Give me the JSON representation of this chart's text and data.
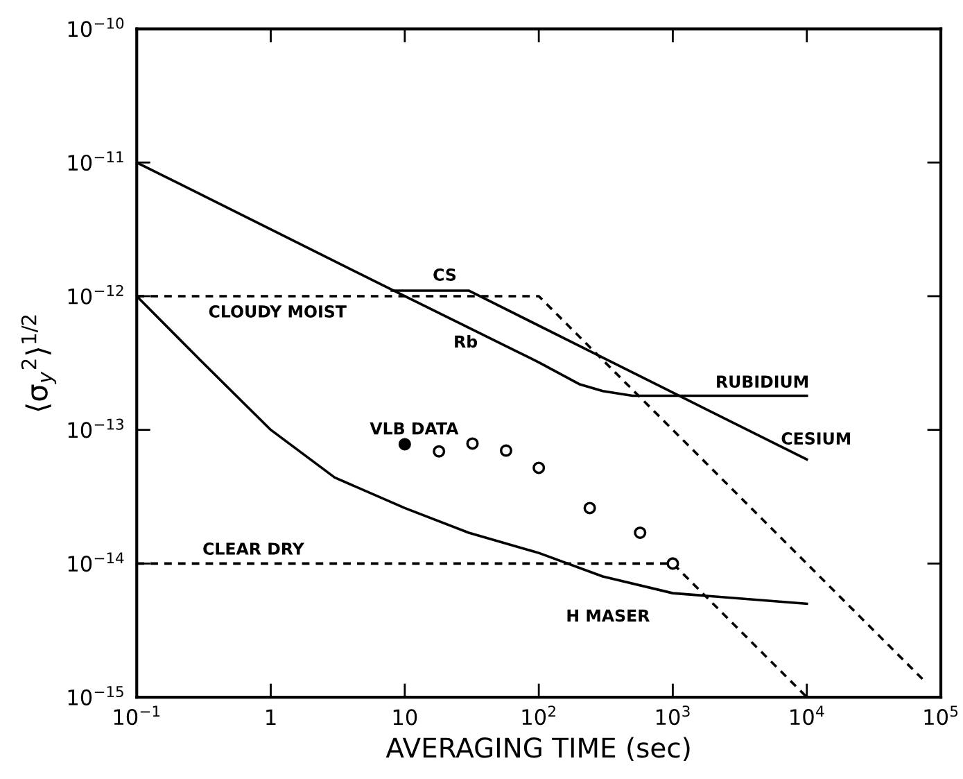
{
  "chart_data": {
    "type": "line",
    "xlabel": "AVERAGING TIME (sec)",
    "ylabel": "⟨σ$_{y}$$^{2}$⟩$^{1/2}$",
    "log": "xy",
    "grid": false,
    "xlim": [
      0.1,
      100000
    ],
    "ylim": [
      1e-15,
      1e-10
    ],
    "xticks": [
      {
        "value": 0.1,
        "label": "10$^{−1}$"
      },
      1,
      10,
      {
        "value": 100,
        "label": "10$^{2}$"
      },
      {
        "value": 1000,
        "label": "10$^{3}$"
      },
      {
        "value": 10000,
        "label": "10$^{4}$"
      },
      {
        "value": 100000,
        "label": "10$^{5}$"
      }
    ],
    "yticks": [
      {
        "value": 1e-15,
        "label": "10$^{−15}$"
      },
      {
        "value": 1e-14,
        "label": "10$^{−14}$"
      },
      {
        "value": 1e-13,
        "label": "10$^{−13}$"
      },
      {
        "value": 1e-12,
        "label": "10$^{−12}$"
      },
      {
        "value": 1e-11,
        "label": "10$^{−11}$"
      },
      {
        "value": 1e-10,
        "label": "10$^{−10}$"
      }
    ],
    "series": [
      {
        "line_style": "solid",
        "color": "#000000",
        "x": [
          0.1,
          1,
          10,
          100,
          200,
          300,
          500,
          1000,
          10000
        ],
        "values": [
          1e-11,
          3.16e-12,
          1e-12,
          3.2e-13,
          2.2e-13,
          1.95e-13,
          1.8e-13,
          1.8e-13,
          1.8e-13
        ]
      },
      {
        "line_style": "solid",
        "color": "#000000",
        "x": [
          8,
          30,
          1000,
          10000
        ],
        "values": [
          1.1e-12,
          1.1e-12,
          1.9e-13,
          6e-14
        ]
      },
      {
        "line_style": "dashed",
        "color": "#000000",
        "x": [
          0.1,
          100,
          75000
        ],
        "values": [
          1e-12,
          1e-12,
          1.33e-15
        ]
      },
      {
        "line_style": "dashed",
        "color": "#000000",
        "x": [
          0.1,
          1000,
          10000
        ],
        "values": [
          1e-14,
          1e-14,
          1e-15
        ]
      },
      {
        "line_style": "solid",
        "color": "#000000",
        "x": [
          0.1,
          0.3,
          1,
          3,
          10,
          30,
          100,
          300,
          1000,
          10000
        ],
        "values": [
          1e-12,
          3.3e-13,
          1e-13,
          4.4e-14,
          2.6e-14,
          1.7e-14,
          1.2e-14,
          8e-15,
          6e-15,
          5e-15
        ]
      },
      {
        "type": "scatter",
        "marker": "circle",
        "color": "#000000",
        "x": [
          10
        ],
        "values": [
          7.8e-14
        ]
      },
      {
        "type": "scatter",
        "marker": "circle",
        "color": "#ffffff",
        "x": [
          18,
          32,
          57,
          100,
          240,
          570,
          1000
        ],
        "values": [
          6.9e-14,
          7.9e-14,
          7e-14,
          5.2e-14,
          2.6e-14,
          1.7e-14,
          1e-14
        ]
      }
    ],
    "annotations": [
      "CS",
      "Rb",
      "CLOUDY MOIST",
      "CLEAR DRY",
      "RUBIDIUM",
      "CESIUM",
      "VLB DATA",
      "H MASER"
    ]
  }
}
